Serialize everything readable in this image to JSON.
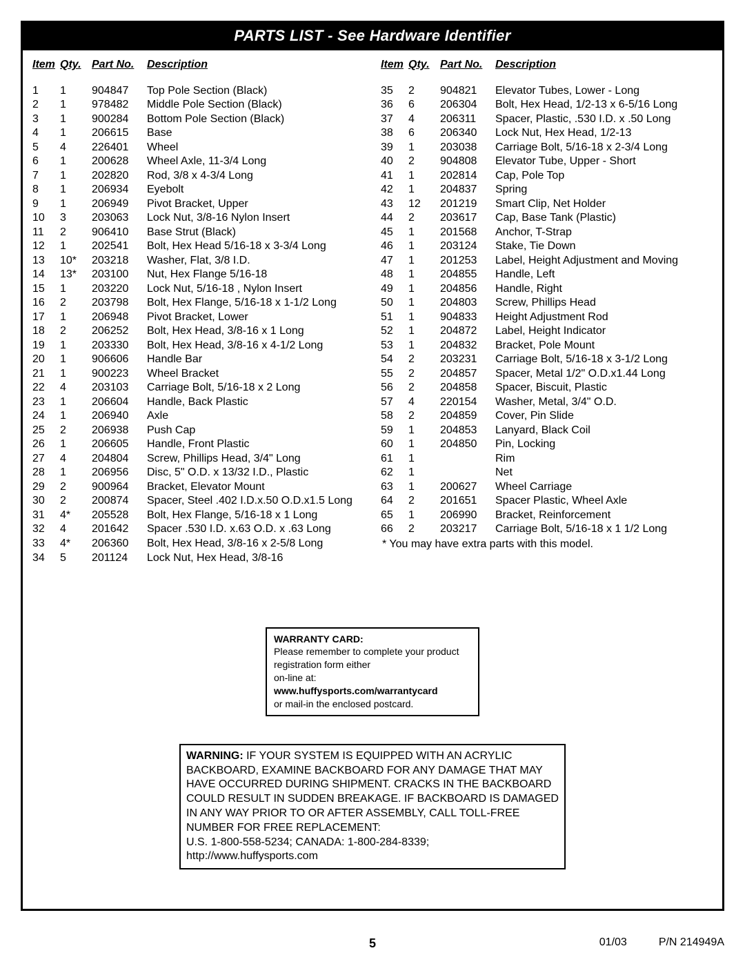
{
  "title": "PARTS LIST - See Hardware Identifier",
  "headers": {
    "item": "Item",
    "qty": "Qty.",
    "part": "Part No.",
    "desc": "Description"
  },
  "left": [
    {
      "item": "1",
      "qty": "1",
      "part": "904847",
      "desc": "Top Pole Section (Black)"
    },
    {
      "item": "2",
      "qty": "1",
      "part": "978482",
      "desc": "Middle Pole Section (Black)"
    },
    {
      "item": "3",
      "qty": "1",
      "part": "900284",
      "desc": "Bottom Pole Section (Black)"
    },
    {
      "item": "4",
      "qty": "1",
      "part": "206615",
      "desc": "Base"
    },
    {
      "item": "5",
      "qty": "4",
      "part": "226401",
      "desc": "Wheel"
    },
    {
      "item": "6",
      "qty": "1",
      "part": "200628",
      "desc": "Wheel Axle, 11-3/4 Long"
    },
    {
      "item": "7",
      "qty": "1",
      "part": "202820",
      "desc": "Rod, 3/8 x 4-3/4 Long"
    },
    {
      "item": "8",
      "qty": "1",
      "part": "206934",
      "desc": "Eyebolt"
    },
    {
      "item": "9",
      "qty": "1",
      "part": "206949",
      "desc": "Pivot Bracket, Upper"
    },
    {
      "item": "10",
      "qty": "3",
      "part": "203063",
      "desc": "Lock Nut, 3/8-16 Nylon Insert"
    },
    {
      "item": "11",
      "qty": "2",
      "part": "906410",
      "desc": "Base Strut (Black)"
    },
    {
      "item": "12",
      "qty": "1",
      "part": "202541",
      "desc": "Bolt, Hex Head 5/16-18 x 3-3/4 Long"
    },
    {
      "item": "13",
      "qty": "10*",
      "part": "203218",
      "desc": "Washer, Flat, 3/8 I.D."
    },
    {
      "item": "14",
      "qty": "13*",
      "part": "203100",
      "desc": "Nut, Hex Flange 5/16-18"
    },
    {
      "item": "15",
      "qty": "1",
      "part": "203220",
      "desc": "Lock Nut, 5/16-18 , Nylon Insert"
    },
    {
      "item": "16",
      "qty": "2",
      "part": "203798",
      "desc": "Bolt, Hex Flange, 5/16-18 x 1-1/2 Long"
    },
    {
      "item": "17",
      "qty": "1",
      "part": "206948",
      "desc": "Pivot Bracket, Lower"
    },
    {
      "item": "18",
      "qty": "2",
      "part": "206252",
      "desc": "Bolt, Hex Head, 3/8-16 x 1 Long"
    },
    {
      "item": "19",
      "qty": "1",
      "part": "203330",
      "desc": "Bolt, Hex Head, 3/8-16 x 4-1/2 Long"
    },
    {
      "item": "20",
      "qty": "1",
      "part": "906606",
      "desc": "Handle Bar"
    },
    {
      "item": "21",
      "qty": "1",
      "part": "900223",
      "desc": "Wheel Bracket"
    },
    {
      "item": "22",
      "qty": "4",
      "part": "203103",
      "desc": "Carriage Bolt, 5/16-18 x 2 Long"
    },
    {
      "item": "23",
      "qty": "1",
      "part": "206604",
      "desc": "Handle, Back Plastic"
    },
    {
      "item": "24",
      "qty": "1",
      "part": "206940",
      "desc": "Axle"
    },
    {
      "item": "25",
      "qty": "2",
      "part": "206938",
      "desc": "Push Cap"
    },
    {
      "item": "26",
      "qty": "1",
      "part": "206605",
      "desc": "Handle, Front Plastic"
    },
    {
      "item": "27",
      "qty": "4",
      "part": "204804",
      "desc": "Screw, Phillips Head, 3/4\" Long"
    },
    {
      "item": "28",
      "qty": "1",
      "part": "206956",
      "desc": "Disc, 5\" O.D. x 13/32 I.D., Plastic"
    },
    {
      "item": "29",
      "qty": "2",
      "part": "900964",
      "desc": "Bracket, Elevator Mount"
    },
    {
      "item": "30",
      "qty": "2",
      "part": "200874",
      "desc": "Spacer, Steel .402 I.D.x.50 O.D.x1.5 Long"
    },
    {
      "item": "31",
      "qty": "4*",
      "part": "205528",
      "desc": "Bolt, Hex Flange, 5/16-18 x 1 Long"
    },
    {
      "item": "32",
      "qty": "4",
      "part": "201642",
      "desc": "Spacer .530 I.D. x.63 O.D. x .63 Long"
    },
    {
      "item": "33",
      "qty": "4*",
      "part": "206360",
      "desc": "Bolt, Hex Head, 3/8-16 x 2-5/8 Long"
    },
    {
      "item": "34",
      "qty": "5",
      "part": "201124",
      "desc": "Lock Nut, Hex Head, 3/8-16"
    }
  ],
  "right": [
    {
      "item": "35",
      "qty": "2",
      "part": "904821",
      "desc": "Elevator Tubes, Lower - Long"
    },
    {
      "item": "36",
      "qty": "6",
      "part": "206304",
      "desc": "Bolt, Hex Head, 1/2-13 x 6-5/16 Long"
    },
    {
      "item": "37",
      "qty": "4",
      "part": "206311",
      "desc": "Spacer, Plastic, .530 I.D. x .50 Long"
    },
    {
      "item": "38",
      "qty": "6",
      "part": "206340",
      "desc": "Lock Nut, Hex Head, 1/2-13"
    },
    {
      "item": "39",
      "qty": "1",
      "part": "203038",
      "desc": "Carriage Bolt, 5/16-18 x 2-3/4 Long"
    },
    {
      "item": "40",
      "qty": "2",
      "part": "904808",
      "desc": "Elevator Tube, Upper - Short"
    },
    {
      "item": "41",
      "qty": "1",
      "part": "202814",
      "desc": "Cap, Pole Top"
    },
    {
      "item": "42",
      "qty": "1",
      "part": "204837",
      "desc": "Spring"
    },
    {
      "item": "43",
      "qty": "12",
      "part": "201219",
      "desc": "Smart Clip, Net Holder"
    },
    {
      "item": "44",
      "qty": "2",
      "part": "203617",
      "desc": "Cap, Base Tank (Plastic)"
    },
    {
      "item": "45",
      "qty": "1",
      "part": "201568",
      "desc": "Anchor, T-Strap"
    },
    {
      "item": "46",
      "qty": "1",
      "part": "203124",
      "desc": "Stake, Tie Down"
    },
    {
      "item": "47",
      "qty": "1",
      "part": "201253",
      "desc": "Label, Height Adjustment and Moving"
    },
    {
      "item": "48",
      "qty": "1",
      "part": "204855",
      "desc": "Handle, Left"
    },
    {
      "item": "49",
      "qty": "1",
      "part": "204856",
      "desc": "Handle, Right"
    },
    {
      "item": "50",
      "qty": "1",
      "part": "204803",
      "desc": "Screw, Phillips Head"
    },
    {
      "item": "51",
      "qty": "1",
      "part": "904833",
      "desc": "Height Adjustment Rod"
    },
    {
      "item": "52",
      "qty": "1",
      "part": "204872",
      "desc": "Label, Height Indicator"
    },
    {
      "item": "53",
      "qty": "1",
      "part": "204832",
      "desc": "Bracket, Pole Mount"
    },
    {
      "item": "54",
      "qty": "2",
      "part": "203231",
      "desc": "Carriage Bolt, 5/16-18 x 3-1/2 Long"
    },
    {
      "item": "55",
      "qty": "2",
      "part": "204857",
      "desc": "Spacer, Metal 1/2\" O.D.x1.44 Long"
    },
    {
      "item": "56",
      "qty": "2",
      "part": "204858",
      "desc": "Spacer, Biscuit, Plastic"
    },
    {
      "item": "57",
      "qty": "4",
      "part": "220154",
      "desc": "Washer, Metal, 3/4\" O.D."
    },
    {
      "item": "58",
      "qty": "2",
      "part": "204859",
      "desc": "Cover, Pin Slide"
    },
    {
      "item": "59",
      "qty": "1",
      "part": "204853",
      "desc": "Lanyard, Black Coil"
    },
    {
      "item": "60",
      "qty": "1",
      "part": "204850",
      "desc": "Pin, Locking"
    },
    {
      "item": "61",
      "qty": "1",
      "part": "",
      "desc": "Rim"
    },
    {
      "item": "62",
      "qty": "1",
      "part": "",
      "desc": "Net"
    },
    {
      "item": "63",
      "qty": "1",
      "part": "200627",
      "desc": "Wheel Carriage"
    },
    {
      "item": "64",
      "qty": "2",
      "part": "201651",
      "desc": "Spacer Plastic, Wheel Axle"
    },
    {
      "item": "65",
      "qty": "1",
      "part": "206990",
      "desc": "Bracket, Reinforcement"
    },
    {
      "item": "66",
      "qty": "2",
      "part": "203217",
      "desc": "Carriage Bolt, 5/16-18 x 1 1/2 Long"
    }
  ],
  "footnote": "* You may have extra parts with this model.",
  "warranty": {
    "title": "WARRANTY CARD:",
    "l1": "Please remember to complete your product registration form either",
    "l2a": "on-line at: ",
    "l2b": "www.huffysports.com/warrantycard",
    "l3": "or mail-in the enclosed postcard."
  },
  "warning": {
    "label": "WARNING:",
    "body": "  IF YOUR SYSTEM IS EQUIPPED WITH AN ACRYLIC BACKBOARD, EXAMINE BACKBOARD FOR ANY DAMAGE THAT MAY HAVE OCCURRED DURING SHIPMENT.  CRACKS IN THE BACKBOARD COULD RESULT IN SUDDEN BREAKAGE.  IF BACKBOARD IS DAMAGED IN ANY WAY PRIOR TO OR AFTER ASSEMBLY, CALL TOLL-FREE NUMBER FOR FREE REPLACEMENT:",
    "contact": "U.S. 1-800-558-5234;  CANADA: 1-800-284-8339; http://www.huffysports.com"
  },
  "footer": {
    "page": "5",
    "date": "01/03",
    "pn": "P/N 214949A"
  }
}
